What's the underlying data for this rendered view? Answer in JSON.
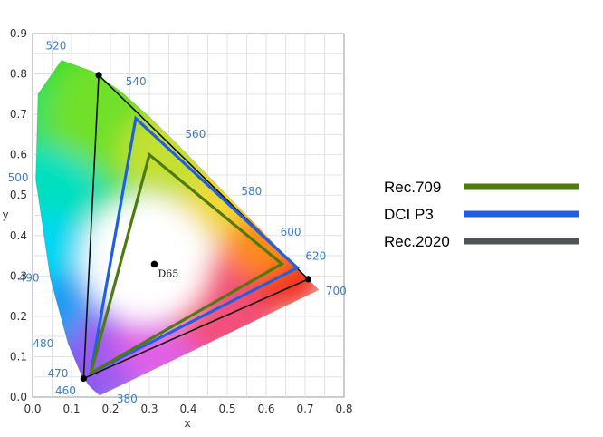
{
  "chart_data": {
    "type": "scatter",
    "title": "",
    "xlabel": "x",
    "ylabel": "y",
    "xlim": [
      0.0,
      0.8
    ],
    "ylim": [
      0.0,
      0.9
    ],
    "x_ticks": [
      "0.0",
      "0.1",
      "0.2",
      "0.3",
      "0.4",
      "0.5",
      "0.6",
      "0.7",
      "0.8"
    ],
    "y_ticks": [
      "0.0",
      "0.1",
      "0.2",
      "0.3",
      "0.4",
      "0.5",
      "0.6",
      "0.7",
      "0.8",
      "0.9"
    ],
    "x_tick_values": [
      0,
      0.1,
      0.2,
      0.3,
      0.4,
      0.5,
      0.6,
      0.7,
      0.8
    ],
    "y_tick_values": [
      0,
      0.1,
      0.2,
      0.3,
      0.4,
      0.5,
      0.6,
      0.7,
      0.8,
      0.9
    ],
    "grid": true,
    "legend_position": "right",
    "spectral_locus": [
      [
        0.1741,
        0.005
      ],
      [
        0.1738,
        0.0049
      ],
      [
        0.1736,
        0.0049
      ],
      [
        0.1733,
        0.0048
      ],
      [
        0.1726,
        0.0048
      ],
      [
        0.1714,
        0.0051
      ],
      [
        0.1689,
        0.0069
      ],
      [
        0.1644,
        0.0109
      ],
      [
        0.1566,
        0.0177
      ],
      [
        0.144,
        0.0297
      ],
      [
        0.1241,
        0.0578
      ],
      [
        0.0913,
        0.1327
      ],
      [
        0.0454,
        0.295
      ],
      [
        0.0082,
        0.5384
      ],
      [
        0.0139,
        0.7502
      ],
      [
        0.0743,
        0.8338
      ],
      [
        0.1547,
        0.8059
      ],
      [
        0.2296,
        0.7543
      ],
      [
        0.3016,
        0.6923
      ],
      [
        0.3731,
        0.6245
      ],
      [
        0.4441,
        0.5547
      ],
      [
        0.5125,
        0.4866
      ],
      [
        0.5752,
        0.4242
      ],
      [
        0.627,
        0.3725
      ],
      [
        0.6658,
        0.334
      ],
      [
        0.6915,
        0.3083
      ],
      [
        0.7079,
        0.292
      ],
      [
        0.719,
        0.2809
      ],
      [
        0.7347,
        0.2653
      ]
    ],
    "wavelength_labels": [
      {
        "label": "380",
        "x": 0.1741,
        "y": 0.005
      },
      {
        "label": "460",
        "x": 0.144,
        "y": 0.0297
      },
      {
        "label": "470",
        "x": 0.1241,
        "y": 0.0578
      },
      {
        "label": "480",
        "x": 0.0913,
        "y": 0.1327
      },
      {
        "label": "490",
        "x": 0.0454,
        "y": 0.295
      },
      {
        "label": "500",
        "x": 0.0082,
        "y": 0.5384
      },
      {
        "label": "520",
        "x": 0.0743,
        "y": 0.8338
      },
      {
        "label": "540",
        "x": 0.2296,
        "y": 0.7543
      },
      {
        "label": "560",
        "x": 0.3731,
        "y": 0.6245
      },
      {
        "label": "580",
        "x": 0.5125,
        "y": 0.4866
      },
      {
        "label": "600",
        "x": 0.627,
        "y": 0.3725
      },
      {
        "label": "620",
        "x": 0.6915,
        "y": 0.3083
      },
      {
        "label": "700",
        "x": 0.7347,
        "y": 0.2653
      }
    ],
    "white_point": {
      "label": "D65",
      "x": 0.3127,
      "y": 0.329
    },
    "series": [
      {
        "name": "Rec.709",
        "color": "#4e7a0f",
        "points": [
          [
            0.64,
            0.33
          ],
          [
            0.3,
            0.6
          ],
          [
            0.15,
            0.06
          ]
        ]
      },
      {
        "name": "DCI P3",
        "color": "#1f5fe0",
        "points": [
          [
            0.68,
            0.32
          ],
          [
            0.265,
            0.69
          ],
          [
            0.15,
            0.06
          ]
        ]
      },
      {
        "name": "Rec.2020",
        "color": "#4d5457",
        "points": [
          [
            0.708,
            0.292
          ],
          [
            0.17,
            0.797
          ],
          [
            0.131,
            0.046
          ]
        ]
      }
    ]
  }
}
